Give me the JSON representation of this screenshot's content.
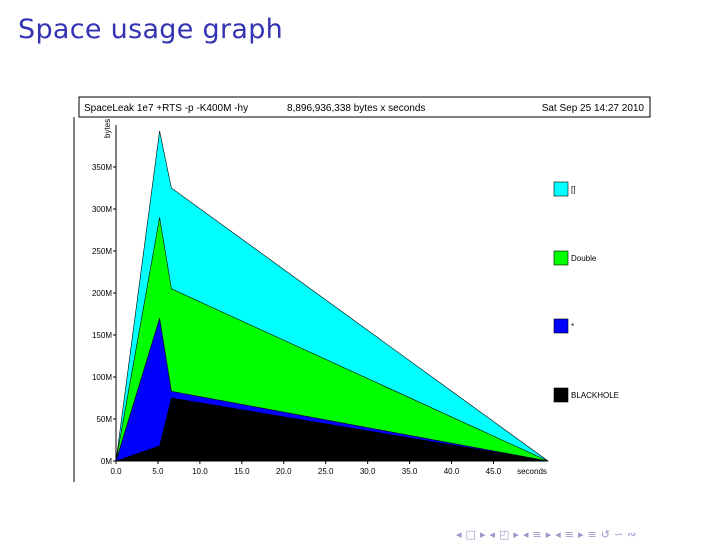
{
  "slide": {
    "title": "Space usage graph",
    "nav_icons": [
      "prev-frame-icon",
      "next-frame-icon",
      "prev-section-icon",
      "next-section-icon",
      "prev-subsection-icon",
      "next-subsection-icon",
      "search-icon"
    ],
    "nav_glyphs": [
      "◂",
      "□",
      "▸",
      "◂",
      "◰",
      "▸",
      "◂",
      "≡",
      "▸",
      "◂",
      "≡",
      "▸",
      "≡",
      "↺",
      "∽",
      "∾"
    ]
  },
  "chart_data": {
    "type": "area",
    "header": {
      "program": "SpaceLeak 1e7 +RTS -p -K400M -hy",
      "total": "8,896,936,338 bytes x seconds",
      "date": "Sat Sep 25 14:27 2010"
    },
    "ylabel": "bytes",
    "xlabel": "seconds",
    "xlim": [
      0,
      51.5
    ],
    "ylim": [
      0,
      400
    ],
    "y_unit": "M",
    "x_ticks": [
      "0.0",
      "5.0",
      "10.0",
      "15.0",
      "20.0",
      "25.0",
      "30.0",
      "35.0",
      "40.0",
      "45.0"
    ],
    "y_ticks": [
      "0M",
      "50M",
      "100M",
      "150M",
      "200M",
      "250M",
      "300M",
      "350M"
    ],
    "x": [
      0.0,
      5.2,
      6.6,
      51.5
    ],
    "series": [
      {
        "name": "BLACKHOLE",
        "color": "#000000",
        "values": [
          0,
          18,
          75,
          0
        ]
      },
      {
        "name": "*",
        "color": "#0000ff",
        "values": [
          0,
          170,
          83,
          0
        ]
      },
      {
        "name": "Double",
        "color": "#00ff00",
        "values": [
          0,
          290,
          205,
          0
        ]
      },
      {
        "name": "[]",
        "color": "#00ffff",
        "values": [
          0,
          393,
          325,
          0
        ]
      }
    ],
    "legend_order": [
      "[]",
      "Double",
      "*",
      "BLACKHOLE"
    ],
    "legend_position": "right"
  }
}
